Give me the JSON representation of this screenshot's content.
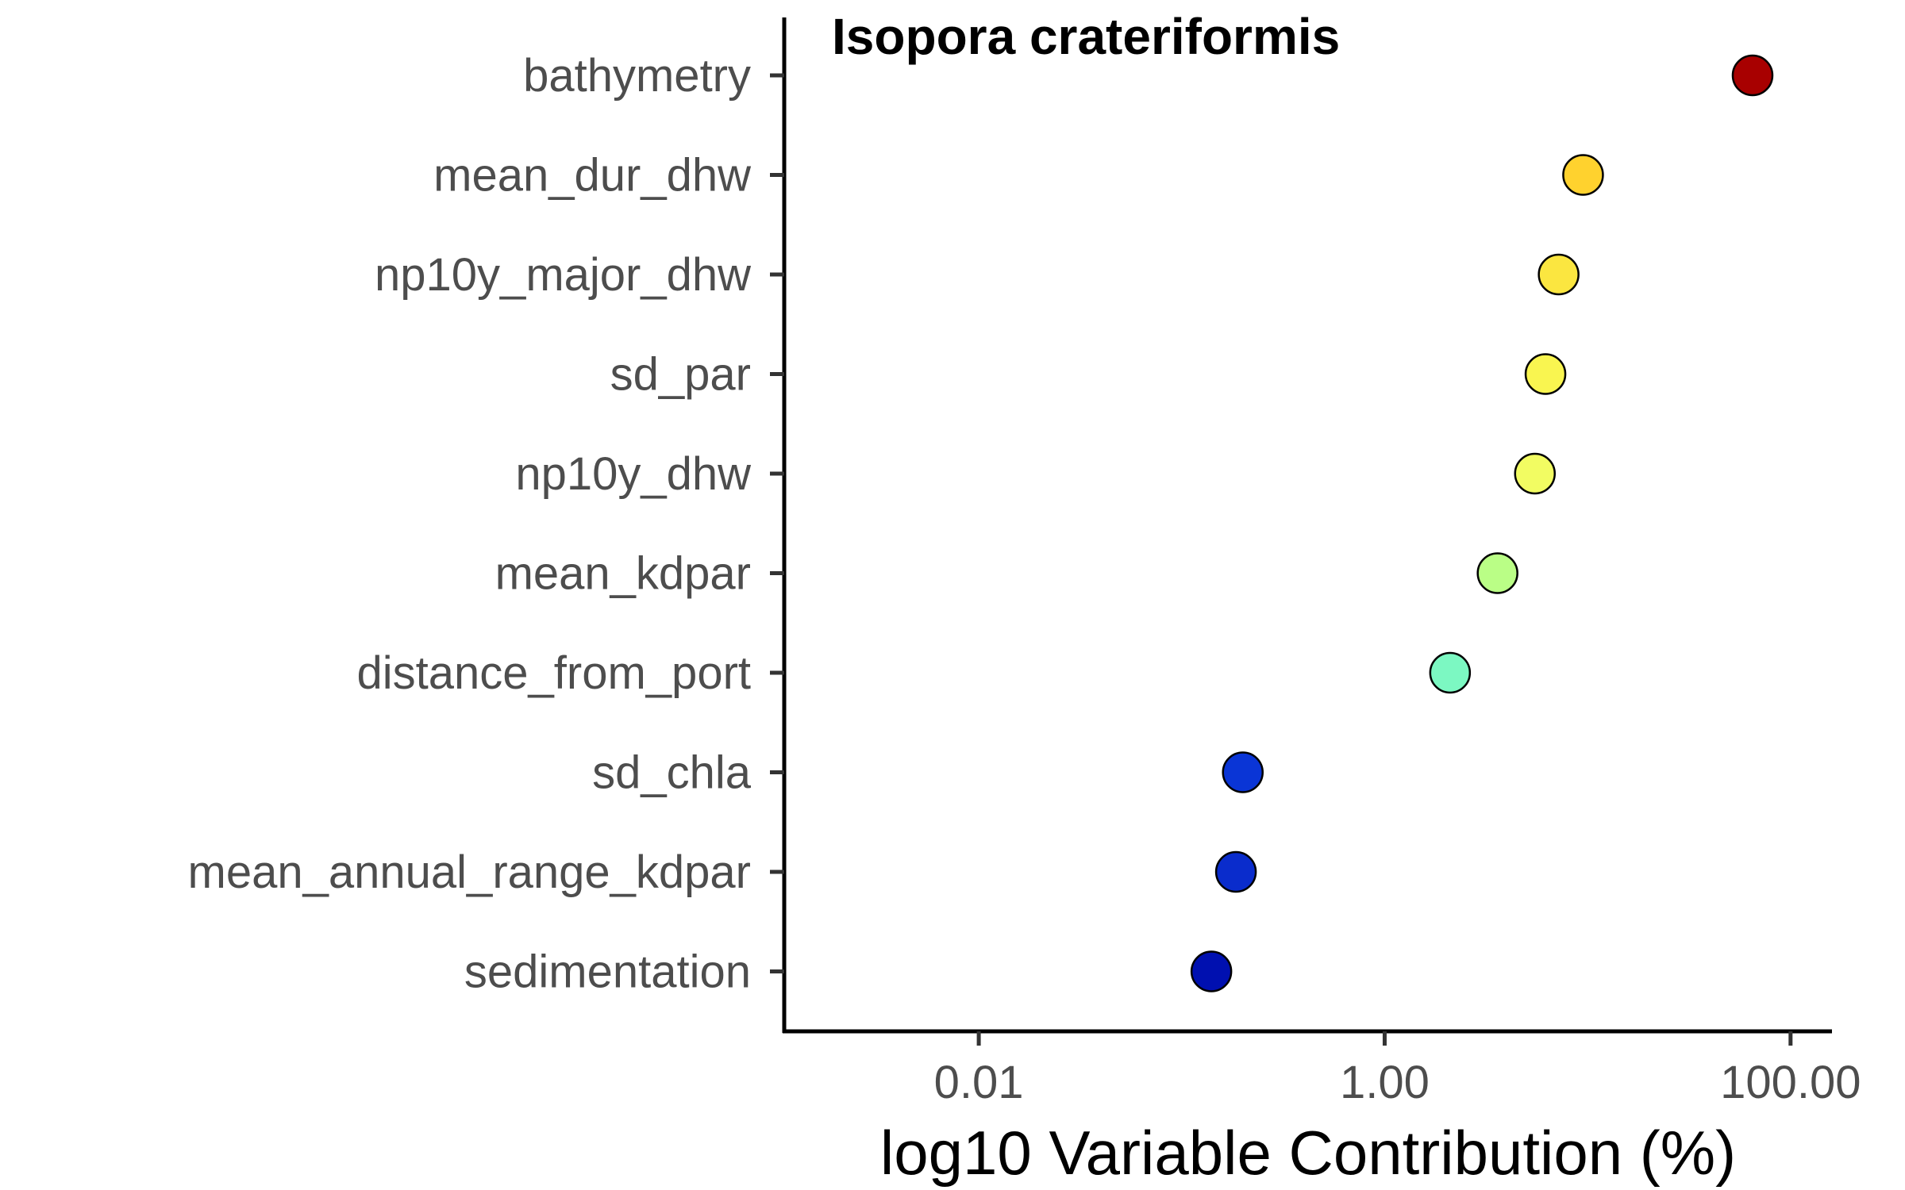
{
  "chart_data": {
    "type": "scatter",
    "title": "Isopora crateriformis",
    "xlabel": "log10 Variable Contribution (%)",
    "ylabel": "",
    "x_scale": "log10",
    "xlim": [
      0.0011,
      160
    ],
    "x_ticks": [
      0.01,
      1,
      100
    ],
    "x_tick_labels": [
      "0.01",
      "1.00",
      "100.00"
    ],
    "grid": false,
    "legend": "none",
    "categories": [
      "bathymetry",
      "mean_dur_dhw",
      "np10y_major_dhw",
      "sd_par",
      "np10y_dhw",
      "mean_kdpar",
      "distance_from_port",
      "sd_chla",
      "mean_annual_range_kdpar",
      "sedimentation"
    ],
    "values": [
      65.0,
      9.5,
      7.2,
      6.2,
      5.5,
      3.6,
      2.1,
      0.2,
      0.185,
      0.14
    ],
    "colors": [
      "#a80000",
      "#ffd22e",
      "#fbe640",
      "#f9f550",
      "#f2fc62",
      "#bafe86",
      "#7cf8c2",
      "#0a35d6",
      "#0a2ccc",
      "#0010b0"
    ],
    "marker_stroke": "#000000"
  }
}
